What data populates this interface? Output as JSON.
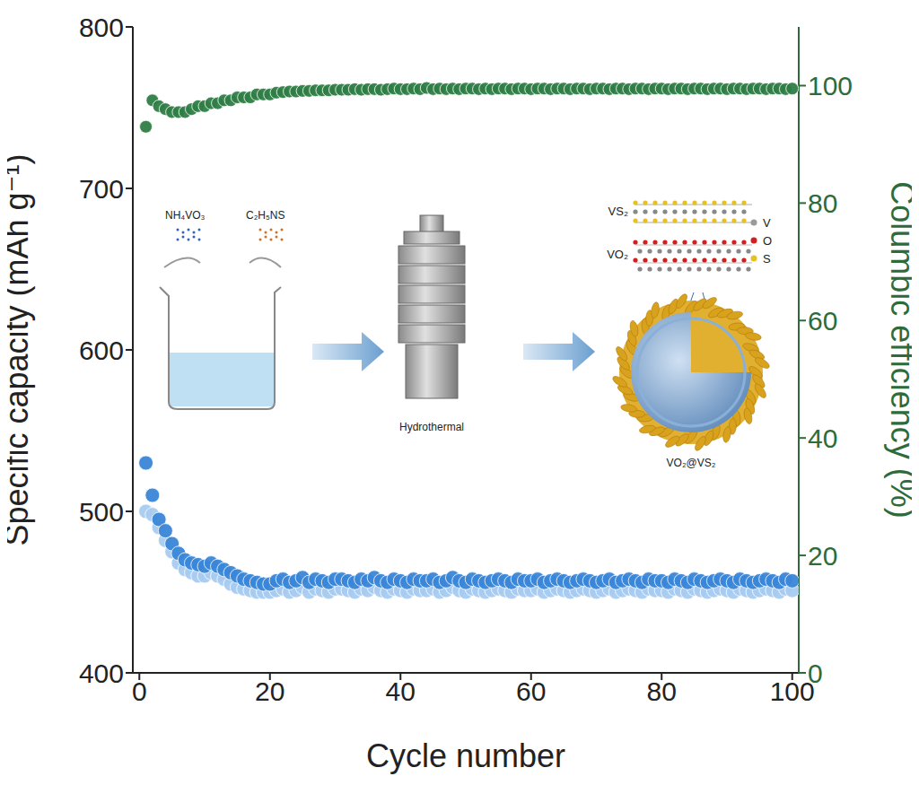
{
  "chart_data": {
    "type": "scatter",
    "x_label": "Cycle number",
    "y_label": "Specific capacity (mAh g⁻¹)",
    "y2_label": "Columbic efficiency (%)",
    "xlim": [
      -1,
      101
    ],
    "xticks": [
      0,
      20,
      40,
      60,
      80,
      100
    ],
    "ylim": [
      400,
      800
    ],
    "yticks": [
      400,
      500,
      600,
      700,
      800
    ],
    "y2lim": [
      0,
      110
    ],
    "y2ticks": [
      0,
      20,
      40,
      60,
      80,
      100
    ],
    "grid": false,
    "marker": "circle",
    "x": [
      1,
      2,
      3,
      4,
      5,
      6,
      7,
      8,
      9,
      10,
      11,
      12,
      13,
      14,
      15,
      16,
      17,
      18,
      19,
      20,
      21,
      22,
      23,
      24,
      25,
      26,
      27,
      28,
      29,
      30,
      31,
      32,
      33,
      34,
      35,
      36,
      37,
      38,
      39,
      40,
      41,
      42,
      43,
      44,
      45,
      46,
      47,
      48,
      49,
      50,
      51,
      52,
      53,
      54,
      55,
      56,
      57,
      58,
      59,
      60,
      61,
      62,
      63,
      64,
      65,
      66,
      67,
      68,
      69,
      70,
      71,
      72,
      73,
      74,
      75,
      76,
      77,
      78,
      79,
      80,
      81,
      82,
      83,
      84,
      85,
      86,
      87,
      88,
      89,
      90,
      91,
      92,
      93,
      94,
      95,
      96,
      97,
      98,
      99,
      100
    ],
    "series": [
      {
        "color": "#a8cbf0",
        "values": [
          500,
          498,
          490,
          482,
          475,
          468,
          464,
          462,
          460,
          460,
          462,
          460,
          458,
          455,
          453,
          452,
          451,
          450,
          450,
          450,
          451,
          452,
          450,
          451,
          453,
          450,
          452,
          451,
          450,
          452,
          452,
          451,
          450,
          452,
          451,
          453,
          451,
          450,
          452,
          451,
          450,
          452,
          451,
          451,
          452,
          450,
          451,
          453,
          451,
          450,
          452,
          451,
          450,
          451,
          452,
          451,
          450,
          452,
          451,
          451,
          452,
          450,
          451,
          452,
          451,
          450,
          451,
          452,
          451,
          450,
          451,
          452,
          450,
          451,
          452,
          451,
          450,
          452,
          451,
          451,
          450,
          452,
          451,
          450,
          452,
          451,
          450,
          451,
          452,
          451,
          450,
          452,
          451,
          450,
          451,
          452,
          451,
          450,
          452,
          451
        ],
        "axis": "y"
      },
      {
        "color": "#3a86d8",
        "values": [
          530,
          510,
          495,
          488,
          480,
          474,
          470,
          468,
          467,
          466,
          468,
          466,
          464,
          462,
          460,
          458,
          457,
          456,
          455,
          455,
          457,
          458,
          456,
          457,
          459,
          456,
          458,
          457,
          456,
          458,
          458,
          457,
          456,
          458,
          457,
          459,
          457,
          456,
          458,
          457,
          456,
          458,
          457,
          457,
          458,
          456,
          457,
          459,
          457,
          456,
          458,
          457,
          456,
          457,
          458,
          457,
          456,
          458,
          457,
          457,
          458,
          456,
          457,
          458,
          457,
          456,
          457,
          458,
          457,
          456,
          457,
          458,
          456,
          457,
          458,
          457,
          456,
          458,
          457,
          457,
          456,
          458,
          457,
          456,
          458,
          457,
          456,
          457,
          458,
          457,
          456,
          458,
          457,
          456,
          457,
          458,
          457,
          456,
          458,
          457
        ],
        "axis": "y"
      },
      {
        "color": "#2e7d46",
        "values": [
          93,
          97.5,
          96.5,
          96,
          95.5,
          95.5,
          95.5,
          96,
          96.5,
          96.5,
          97,
          97,
          97.5,
          97.5,
          98,
          98,
          98,
          98.5,
          98.5,
          98.5,
          98.8,
          98.9,
          99,
          99,
          99.1,
          99.1,
          99.2,
          99.2,
          99.2,
          99.3,
          99.3,
          99.3,
          99.4,
          99.3,
          99.4,
          99.4,
          99.3,
          99.4,
          99.5,
          99.4,
          99.4,
          99.5,
          99.4,
          99.6,
          99.4,
          99.5,
          99.4,
          99.5,
          99.4,
          99.5,
          99.5,
          99.4,
          99.5,
          99.4,
          99.5,
          99.5,
          99.4,
          99.5,
          99.5,
          99.4,
          99.5,
          99.5,
          99.4,
          99.5,
          99.5,
          99.4,
          99.5,
          99.5,
          99.4,
          99.5,
          99.5,
          99.4,
          99.5,
          99.5,
          99.4,
          99.5,
          99.5,
          99.4,
          99.5,
          99.5,
          99.4,
          99.5,
          99.5,
          99.4,
          99.5,
          99.5,
          99.4,
          99.5,
          99.5,
          99.4,
          99.5,
          99.5,
          99.4,
          99.5,
          99.5,
          99.4,
          99.5,
          99.5,
          99.4,
          99.5
        ],
        "axis": "y2"
      }
    ],
    "inset": {
      "reagents": [
        "NH₄VO₃",
        "C₂H₅NS"
      ],
      "step": "Hydrothermal",
      "layers": [
        "VS₂",
        "VO₂"
      ],
      "elements": [
        "V",
        "O",
        "S"
      ],
      "product": "VO₂@VS₂"
    }
  }
}
